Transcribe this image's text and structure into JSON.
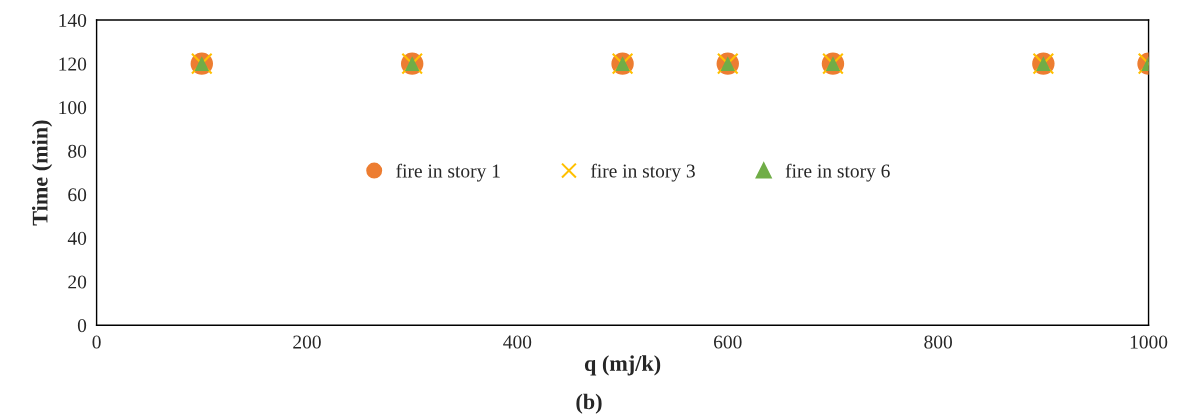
{
  "chart_data": {
    "type": "scatter",
    "xlabel": "q (mj/k)",
    "ylabel": "Time (min)",
    "x": [
      100,
      300,
      500,
      600,
      700,
      900,
      1000
    ],
    "series": [
      {
        "name": "fire in story 1",
        "color": "#ed7d31",
        "marker": "circle",
        "values": [
          120,
          120,
          120,
          120,
          120,
          120,
          120
        ]
      },
      {
        "name": "fire in story 3",
        "color": "#ffc000",
        "marker": "cross",
        "values": [
          120,
          120,
          120,
          120,
          120,
          120,
          120
        ]
      },
      {
        "name": "fire in story 6",
        "color": "#70ad47",
        "marker": "triangle",
        "values": [
          120,
          120,
          120,
          120,
          120,
          120,
          120
        ]
      }
    ],
    "xlim": [
      0,
      1000
    ],
    "xticks": [
      0,
      200,
      400,
      600,
      800,
      1000
    ],
    "ylim": [
      0,
      140
    ],
    "yticks": [
      0,
      20,
      40,
      60,
      80,
      100,
      120,
      140
    ],
    "grid": false,
    "legend": "center",
    "annotations": [
      "(b)"
    ]
  }
}
